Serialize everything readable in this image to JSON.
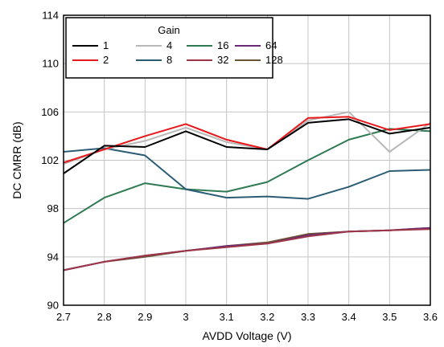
{
  "chart_data": {
    "type": "line",
    "title": "",
    "xlabel": "AVDD Voltage (V)",
    "ylabel": "DC CMRR (dB)",
    "xlim": [
      2.7,
      3.6
    ],
    "ylim": [
      90,
      114
    ],
    "x_ticks": [
      "2.7",
      "2.8",
      "2.9",
      "3",
      "3.1",
      "3.2",
      "3.3",
      "3.4",
      "3.5",
      "3.6"
    ],
    "y_ticks": [
      "90",
      "94",
      "98",
      "102",
      "106",
      "110",
      "114"
    ],
    "grid": true,
    "legend": {
      "title": "Gain",
      "placement": "top-left"
    },
    "x": [
      2.7,
      2.8,
      2.9,
      3.0,
      3.1,
      3.2,
      3.3,
      3.4,
      3.5,
      3.6
    ],
    "series": [
      {
        "name": "1",
        "color": "#000000",
        "values": [
          100.9,
          103.2,
          103.1,
          104.4,
          103.1,
          102.9,
          105.1,
          105.4,
          104.2,
          104.7
        ]
      },
      {
        "name": "2",
        "color": "#e8191c",
        "values": [
          101.8,
          102.9,
          104.0,
          105.0,
          103.7,
          102.9,
          105.5,
          105.6,
          104.5,
          105.0
        ]
      },
      {
        "name": "4",
        "color": "#b8b8b8",
        "values": [
          101.7,
          102.9,
          103.6,
          104.7,
          103.5,
          102.9,
          105.3,
          106.0,
          102.7,
          105.1
        ]
      },
      {
        "name": "8",
        "color": "#2b5c76",
        "values": [
          102.7,
          103.0,
          102.4,
          99.6,
          98.9,
          99.0,
          98.8,
          99.8,
          101.1,
          101.2
        ]
      },
      {
        "name": "16",
        "color": "#2e7a52",
        "values": [
          96.8,
          98.9,
          100.1,
          99.6,
          99.4,
          100.2,
          102.0,
          103.7,
          104.6,
          104.4
        ]
      },
      {
        "name": "32",
        "color": "#9c3648",
        "values": [
          92.9,
          93.6,
          94.1,
          94.5,
          94.8,
          95.1,
          95.7,
          96.1,
          96.2,
          96.3
        ]
      },
      {
        "name": "64",
        "color": "#6b2a78",
        "values": [
          92.9,
          93.6,
          94.1,
          94.5,
          94.9,
          95.1,
          95.8,
          96.1,
          96.2,
          96.4
        ]
      },
      {
        "name": "128",
        "color": "#6b5431",
        "values": [
          92.9,
          93.6,
          94.0,
          94.5,
          94.9,
          95.2,
          95.9,
          96.1,
          96.2,
          96.4
        ]
      }
    ],
    "legend_order": [
      "1",
      "2",
      "4",
      "8",
      "16",
      "32",
      "64",
      "128"
    ]
  }
}
